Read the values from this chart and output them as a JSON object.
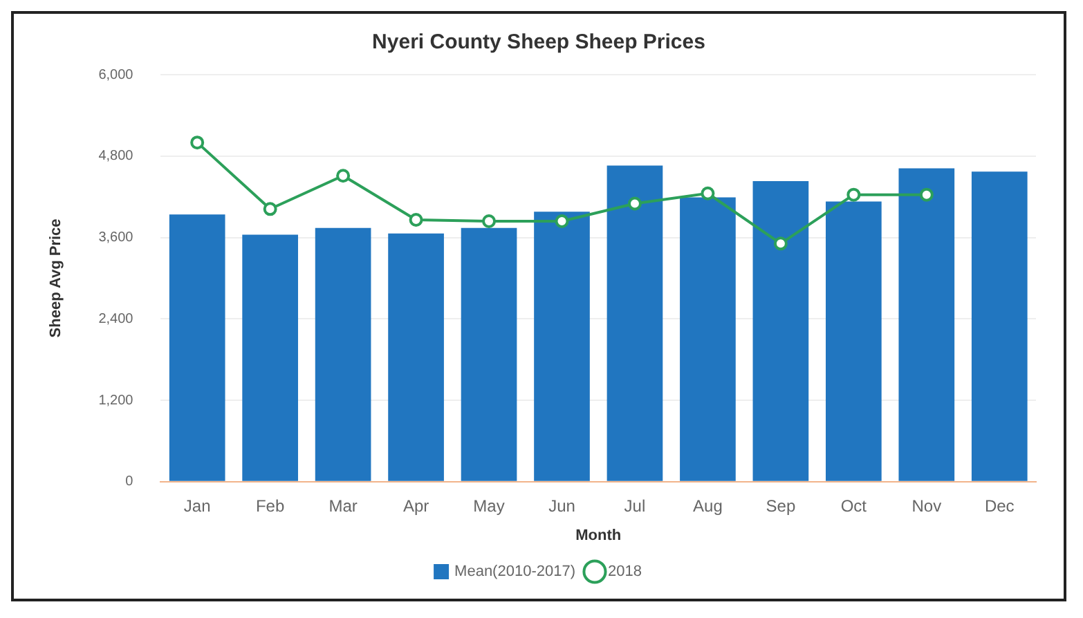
{
  "chart_data": {
    "type": "bar",
    "title": "Nyeri County Sheep Sheep Prices",
    "xlabel": "Month",
    "ylabel": "Sheep Avg Price",
    "categories": [
      "Jan",
      "Feb",
      "Mar",
      "Apr",
      "May",
      "Jun",
      "Jul",
      "Aug",
      "Sep",
      "Oct",
      "Nov",
      "Dec"
    ],
    "series": [
      {
        "name": "Mean(2010-2017)",
        "color": "#2176c0",
        "values": [
          3940,
          3640,
          3740,
          3660,
          3740,
          3980,
          4660,
          4190,
          4430,
          4130,
          4620,
          4570
        ]
      },
      {
        "name": "2018",
        "type": "line",
        "color": "#2ca05a",
        "values": [
          5000,
          4020,
          4510,
          3860,
          3840,
          3840,
          4100,
          4250,
          3510,
          4230,
          4230,
          null
        ]
      }
    ],
    "ylim": [
      0,
      6000
    ],
    "yticks": [
      {
        "value": 0,
        "label": "0"
      },
      {
        "value": 1200,
        "label": "1,200"
      },
      {
        "value": 2400,
        "label": "2,400"
      },
      {
        "value": 3600,
        "label": "3,600"
      },
      {
        "value": 4800,
        "label": "4,800"
      },
      {
        "value": 6000,
        "label": "6,000"
      }
    ],
    "grid": "y",
    "legend": "bottom",
    "marker": "circle",
    "line_style": "solid"
  }
}
